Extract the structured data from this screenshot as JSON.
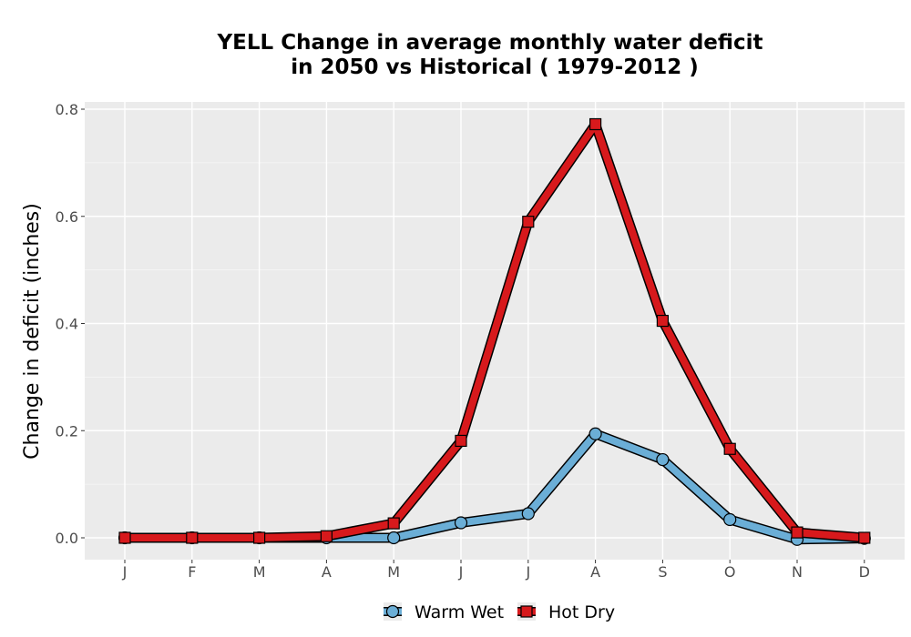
{
  "chart_data": {
    "type": "line",
    "title_line1": "YELL  Change in average monthly water deficit",
    "title_line2": "in 2050 vs Historical ( 1979-2012 )",
    "xlabel": "",
    "ylabel": "Change in deficit (inches)",
    "categories": [
      "J",
      "F",
      "M",
      "A",
      "M",
      "J",
      "J",
      "A",
      "S",
      "O",
      "N",
      "D"
    ],
    "y_ticks": [
      "0.0",
      "0.2",
      "0.4",
      "0.6",
      "0.8"
    ],
    "ylim": [
      -0.04,
      0.81
    ],
    "grid": true,
    "legend_position": "bottom",
    "series": [
      {
        "name": "Warm Wet",
        "color": "#6baed6",
        "marker": "circle",
        "values": [
          0.0,
          0.0,
          0.0,
          0.0,
          0.0,
          0.028,
          0.045,
          0.194,
          0.146,
          0.034,
          -0.003,
          -0.001
        ]
      },
      {
        "name": "Hot Dry",
        "color": "#d7191c",
        "marker": "square",
        "values": [
          0.0,
          0.0,
          0.0,
          0.003,
          0.027,
          0.181,
          0.59,
          0.772,
          0.405,
          0.166,
          0.01,
          0.0
        ]
      }
    ]
  }
}
